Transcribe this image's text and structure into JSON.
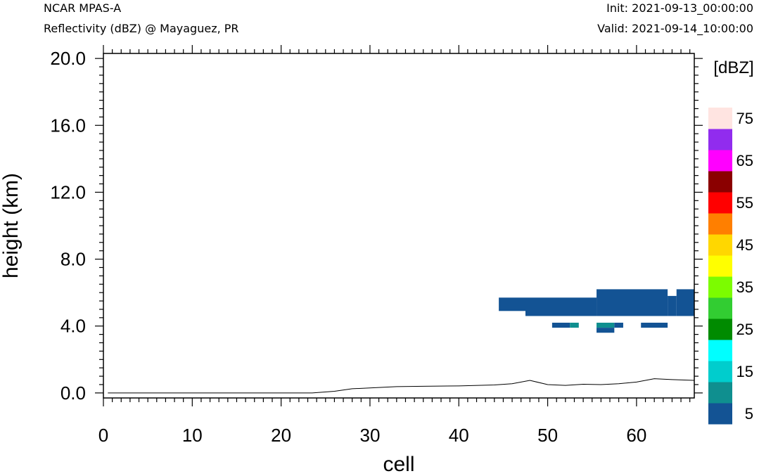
{
  "header": {
    "model": "NCAR MPAS-A",
    "field": "Reflectivity (dBZ) @ Mayaguez, PR",
    "init": "Init: 2021-09-13_00:00:00",
    "valid": "Valid: 2021-09-14_10:00:00"
  },
  "chart_data": {
    "type": "heatmap",
    "title": "Reflectivity (dBZ) @ Mayaguez, PR",
    "xlabel": "cell",
    "ylabel": "height (km)",
    "xlim": [
      0,
      66.5
    ],
    "ylim": [
      -0.3,
      20.3
    ],
    "x_ticks": [
      0,
      10,
      20,
      30,
      40,
      50,
      60
    ],
    "x_tick_labels": [
      "0",
      "10",
      "20",
      "30",
      "40",
      "50",
      "60"
    ],
    "y_ticks": [
      0,
      4,
      8,
      12,
      16,
      20
    ],
    "y_tick_labels": [
      "0.0",
      "4.0",
      "8.0",
      "12.0",
      "16.0",
      "20.0"
    ],
    "colorbar": {
      "unit": "[dBZ]",
      "levels": [
        5,
        10,
        15,
        20,
        25,
        30,
        35,
        40,
        45,
        50,
        55,
        60,
        65,
        70,
        75
      ],
      "colors": [
        "#135394",
        "#0f8f8f",
        "#00cdcd",
        "#00ffff",
        "#008b00",
        "#32cd32",
        "#7cfc00",
        "#ffff00",
        "#ffd700",
        "#ff7f00",
        "#ff0000",
        "#8b0000",
        "#ff00ff",
        "#912cee",
        "#ffe4e1"
      ],
      "tick_labels": [
        "5",
        "15",
        "25",
        "35",
        "45",
        "55",
        "65",
        "75"
      ]
    },
    "cells": [
      {
        "x0": 44.5,
        "x1": 47.5,
        "y0": 4.9,
        "y1": 5.7,
        "dbz": 5
      },
      {
        "x0": 47.5,
        "x1": 55.5,
        "y0": 4.6,
        "y1": 5.7,
        "dbz": 5
      },
      {
        "x0": 55.5,
        "x1": 63.5,
        "y0": 4.6,
        "y1": 6.2,
        "dbz": 5
      },
      {
        "x0": 63.5,
        "x1": 64.5,
        "y0": 4.6,
        "y1": 5.8,
        "dbz": 5
      },
      {
        "x0": 64.5,
        "x1": 66.5,
        "y0": 4.6,
        "y1": 6.2,
        "dbz": 5
      },
      {
        "x0": 50.5,
        "x1": 52.5,
        "y0": 3.9,
        "y1": 4.2,
        "dbz": 5
      },
      {
        "x0": 52.5,
        "x1": 53.5,
        "y0": 3.9,
        "y1": 4.2,
        "dbz": 10
      },
      {
        "x0": 55.5,
        "x1": 57.5,
        "y0": 3.9,
        "y1": 4.2,
        "dbz": 10
      },
      {
        "x0": 57.5,
        "x1": 58.5,
        "y0": 3.9,
        "y1": 4.2,
        "dbz": 5
      },
      {
        "x0": 55.5,
        "x1": 57.5,
        "y0": 3.6,
        "y1": 3.9,
        "dbz": 5
      },
      {
        "x0": 60.5,
        "x1": 63.5,
        "y0": 3.9,
        "y1": 4.2,
        "dbz": 5
      }
    ],
    "terrain": {
      "x": [
        0.5,
        23.5,
        26,
        28,
        30,
        33,
        36,
        40,
        44,
        46,
        48,
        50,
        52,
        54,
        56,
        58,
        60,
        62,
        64,
        66.5
      ],
      "y": [
        0.0,
        0.0,
        0.1,
        0.25,
        0.3,
        0.38,
        0.4,
        0.42,
        0.48,
        0.55,
        0.75,
        0.5,
        0.45,
        0.52,
        0.5,
        0.55,
        0.65,
        0.85,
        0.8,
        0.75
      ]
    }
  }
}
